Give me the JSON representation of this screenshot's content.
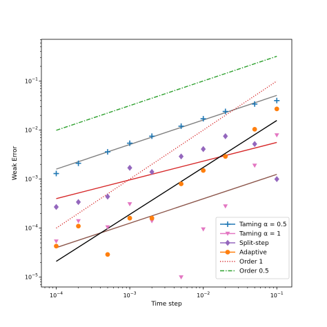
{
  "chart_data": {
    "type": "scatter",
    "xlabel": "Time step",
    "ylabel": "Weak Error",
    "xscale": "log",
    "yscale": "log",
    "xlim": [
      6.28e-05,
      0.16
    ],
    "ylim": [
      6.3e-06,
      0.71
    ],
    "grid": false,
    "legend_position": "bottom-right",
    "x_ticks": [
      {
        "value": 0.0001,
        "base": "10",
        "exp": "−4"
      },
      {
        "value": 0.001,
        "base": "10",
        "exp": "−3"
      },
      {
        "value": 0.01,
        "base": "10",
        "exp": "−2"
      },
      {
        "value": 0.1,
        "base": "10",
        "exp": "−1"
      }
    ],
    "y_ticks": [
      {
        "value": 1e-05,
        "base": "10",
        "exp": "−5"
      },
      {
        "value": 0.0001,
        "base": "10",
        "exp": "−4"
      },
      {
        "value": 0.001,
        "base": "10",
        "exp": "−3"
      },
      {
        "value": 0.01,
        "base": "10",
        "exp": "−2"
      },
      {
        "value": 0.1,
        "base": "10",
        "exp": "−1"
      }
    ],
    "x": [
      0.0001,
      0.0002,
      0.0005,
      0.001,
      0.002,
      0.005,
      0.01,
      0.02,
      0.05,
      0.1
    ],
    "series": [
      {
        "name": "Taming α = 0.5",
        "marker": "plus",
        "color": "#1f77b4",
        "values": [
          0.0013,
          0.0021,
          0.0036,
          0.0054,
          0.0075,
          0.012,
          0.017,
          0.024,
          0.034,
          0.04
        ],
        "fit": {
          "color": "#808080",
          "points": [
            [
              0.0001,
              0.0016
            ],
            [
              0.1,
              0.051
            ]
          ]
        }
      },
      {
        "name": "Taming α = 1",
        "marker": "triangle-down",
        "color": "#e377c2",
        "values": [
          5.4e-05,
          0.00014,
          0.000105,
          0.00031,
          0.00014,
          1e-05,
          9.5e-05,
          0.00028,
          0.0019,
          0.0079
        ],
        "fit": {
          "color": "#8c564b",
          "points": [
            [
              0.0001,
              4e-05
            ],
            [
              0.1,
              0.00125
            ]
          ]
        }
      },
      {
        "name": "Split-step",
        "marker": "diamond",
        "color": "#9467bd",
        "values": [
          0.00027,
          0.00034,
          0.00044,
          0.0017,
          0.0014,
          0.0029,
          0.0041,
          0.0075,
          0.0052,
          0.001
        ],
        "fit": {
          "color": "#d62728",
          "points": [
            [
              0.0001,
              0.0004
            ],
            [
              0.1,
              0.0056
            ]
          ]
        }
      },
      {
        "name": "Adaptive",
        "marker": "circle",
        "color": "#ff7f0e",
        "values": [
          4.3e-05,
          0.00011,
          2.9e-05,
          0.00016,
          0.00016,
          0.0008,
          0.0015,
          0.0029,
          0.0104,
          0.027
        ],
        "fit": {
          "color": "#000000",
          "points": [
            [
              0.0001,
              2.1e-05
            ],
            [
              0.1,
              0.0157
            ]
          ]
        }
      }
    ],
    "reference_lines": [
      {
        "name": "Order 1",
        "color": "#d62728",
        "style": "dotted",
        "points": [
          [
            0.0001,
            0.0001
          ],
          [
            0.1,
            0.1
          ]
        ]
      },
      {
        "name": "Order 0.5",
        "color": "#2ca02c",
        "style": "dashdot",
        "points": [
          [
            0.0001,
            0.0099
          ],
          [
            0.1,
            0.32
          ]
        ]
      }
    ]
  }
}
